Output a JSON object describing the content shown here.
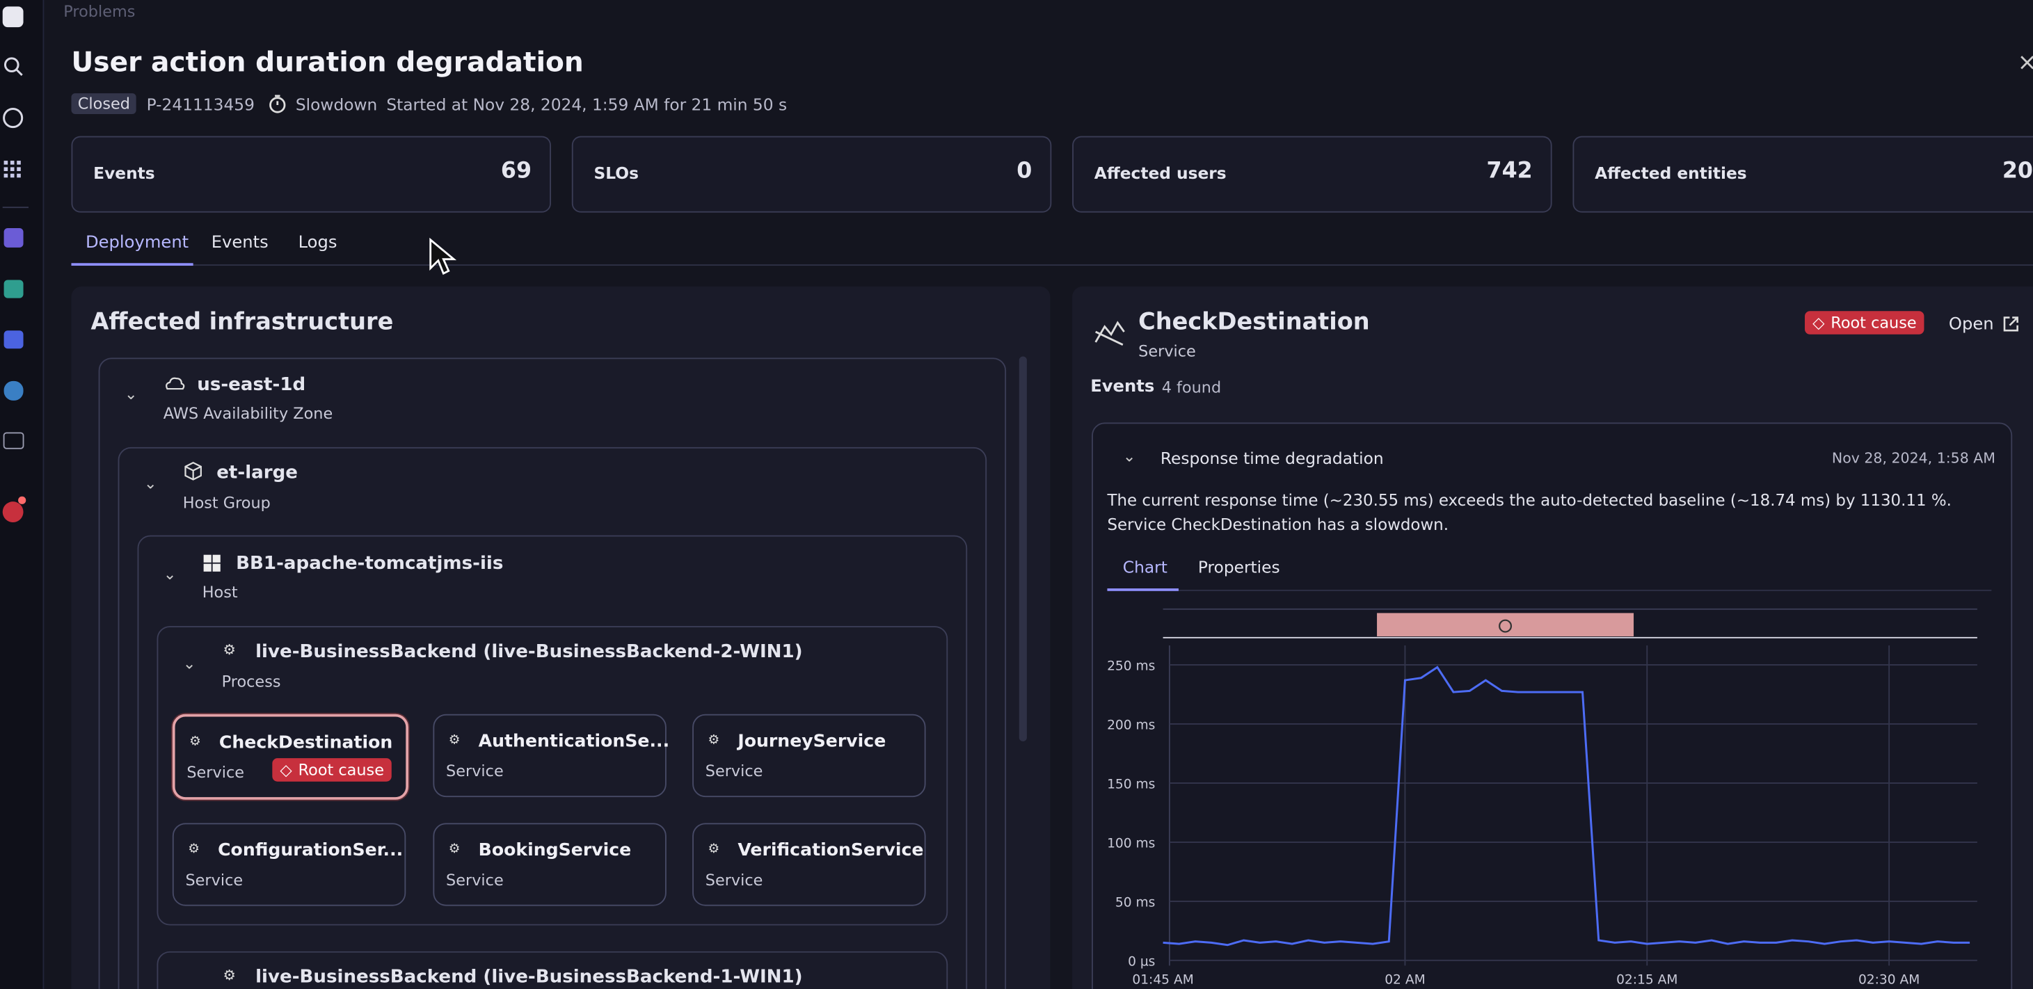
{
  "nav": {
    "breadcrumb": "Problems"
  },
  "header": {
    "title": "User action duration degradation",
    "status": "Closed",
    "id": "P-241113459",
    "kind": "Slowdown",
    "started": "Started at Nov 28, 2024, 1:59 AM for 21 min 50 s"
  },
  "stats": [
    {
      "label": "Events",
      "value": 69
    },
    {
      "label": "SLOs",
      "value": 0
    },
    {
      "label": "Affected users",
      "value": 742
    },
    {
      "label": "Affected entities",
      "value": 20
    }
  ],
  "tabs": [
    "Deployment",
    "Events",
    "Logs"
  ],
  "infrastructure": {
    "title": "Affected infrastructure",
    "zone": {
      "name": "us-east-1d",
      "type": "AWS Availability Zone"
    },
    "group": {
      "name": "et-large",
      "type": "Host Group"
    },
    "host": {
      "name": "BB1-apache-tomcatjms-iis",
      "type": "Host"
    },
    "process": {
      "name": "live-BusinessBackend (live-BusinessBackend-2-WIN1)",
      "type": "Process"
    },
    "services": [
      {
        "name": "CheckDestination",
        "type": "Service",
        "badge": "Root cause"
      },
      {
        "name": "AuthenticationSe...",
        "type": "Service"
      },
      {
        "name": "JourneyService",
        "type": "Service"
      },
      {
        "name": "ConfigurationSer...",
        "type": "Service"
      },
      {
        "name": "BookingService",
        "type": "Service"
      },
      {
        "name": "VerificationService",
        "type": "Service"
      }
    ],
    "next_process": "live-BusinessBackend (live-BusinessBackend-1-WIN1)"
  },
  "detail": {
    "name": "CheckDestination",
    "type": "Service",
    "badge": "Root cause",
    "open": "Open",
    "events_label": "Events",
    "events_count": "4 found",
    "event": {
      "title": "Response time degradation",
      "time": "Nov 28, 2024, 1:58 AM",
      "description": "The current response time (~230.55 ms) exceeds the auto-detected baseline (~18.74 ms) by 1130.11 %. Service CheckDestination has a slowdown.",
      "tabs": [
        "Chart",
        "Properties"
      ]
    }
  },
  "chart_data": {
    "type": "line",
    "categories": [
      "01:45 AM",
      null,
      null,
      null,
      null,
      null,
      null,
      null,
      null,
      null,
      null,
      null,
      null,
      null,
      null,
      "02 AM",
      null,
      null,
      null,
      null,
      null,
      null,
      null,
      null,
      null,
      null,
      null,
      null,
      null,
      null,
      "02:15 AM",
      null,
      null,
      null,
      null,
      null,
      null,
      null,
      null,
      null,
      null,
      null,
      null,
      null,
      null,
      "02:30 AM",
      null,
      null,
      null,
      null,
      null
    ],
    "series": [
      {
        "color": "#4d6cf5",
        "values": [
          15,
          14,
          16,
          15,
          13,
          17,
          15,
          16,
          14,
          17,
          15,
          16,
          15,
          14,
          16,
          237,
          239,
          248,
          227,
          228,
          237,
          228,
          227,
          227,
          227,
          227,
          227,
          17,
          15,
          16,
          14,
          15,
          16,
          15,
          17,
          14,
          16,
          15,
          15,
          17,
          16,
          14,
          16,
          17,
          15,
          16,
          15,
          14,
          16,
          15,
          15
        ]
      }
    ],
    "ylim": [
      0,
      250
    ],
    "yticks": [
      {
        "value": 0,
        "label": "0 µs"
      },
      {
        "value": 50,
        "label": "50 ms"
      },
      {
        "value": 100,
        "label": "100 ms"
      },
      {
        "value": 150,
        "label": "150 ms"
      },
      {
        "value": 200,
        "label": "200 ms"
      },
      {
        "value": 250,
        "label": "250 ms"
      }
    ],
    "grid": true
  }
}
